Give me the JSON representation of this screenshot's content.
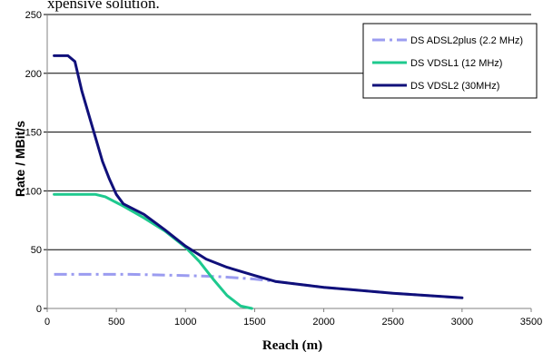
{
  "caption": "xpensive solution.",
  "chart_data": {
    "type": "line",
    "xlabel": "Reach (m)",
    "ylabel": "Rate / MBit/s",
    "xlim": [
      0,
      3500
    ],
    "ylim": [
      0,
      250
    ],
    "xticks": [
      "0",
      "500",
      "1000",
      "1500",
      "2000",
      "2500",
      "3000",
      "3500"
    ],
    "yticks": [
      "0",
      "50",
      "100",
      "150",
      "200",
      "250"
    ],
    "grid": "horizontal",
    "legend_position": "top-right",
    "series": [
      {
        "name": "DS ADSL2plus (2.2 MHz)",
        "color": "#9b9cf0",
        "style": "dashdot",
        "points": [
          [
            50,
            29
          ],
          [
            300,
            29
          ],
          [
            600,
            29
          ],
          [
            1000,
            28
          ],
          [
            1250,
            27
          ],
          [
            1500,
            25
          ],
          [
            1650,
            23
          ],
          [
            2000,
            18
          ],
          [
            2500,
            13
          ],
          [
            3000,
            9
          ]
        ]
      },
      {
        "name": "DS VDSL1 (12 MHz)",
        "color": "#1ec98e",
        "style": "solid",
        "points": [
          [
            50,
            97
          ],
          [
            200,
            97
          ],
          [
            350,
            97
          ],
          [
            420,
            95
          ],
          [
            550,
            87
          ],
          [
            700,
            77
          ],
          [
            850,
            66
          ],
          [
            1000,
            52
          ],
          [
            1100,
            40
          ],
          [
            1200,
            25
          ],
          [
            1300,
            11
          ],
          [
            1400,
            2
          ],
          [
            1480,
            0
          ]
        ]
      },
      {
        "name": "DS VDSL2 (30MHz)",
        "color": "#10107a",
        "style": "solid",
        "points": [
          [
            50,
            215
          ],
          [
            100,
            215
          ],
          [
            150,
            215
          ],
          [
            200,
            210
          ],
          [
            250,
            185
          ],
          [
            300,
            165
          ],
          [
            350,
            145
          ],
          [
            400,
            125
          ],
          [
            450,
            110
          ],
          [
            500,
            97
          ],
          [
            550,
            89
          ],
          [
            700,
            80
          ],
          [
            850,
            67
          ],
          [
            1000,
            53
          ],
          [
            1150,
            42
          ],
          [
            1300,
            35
          ],
          [
            1500,
            28
          ],
          [
            1650,
            23
          ],
          [
            2000,
            18
          ],
          [
            2500,
            13
          ],
          [
            3000,
            9
          ]
        ]
      }
    ]
  }
}
